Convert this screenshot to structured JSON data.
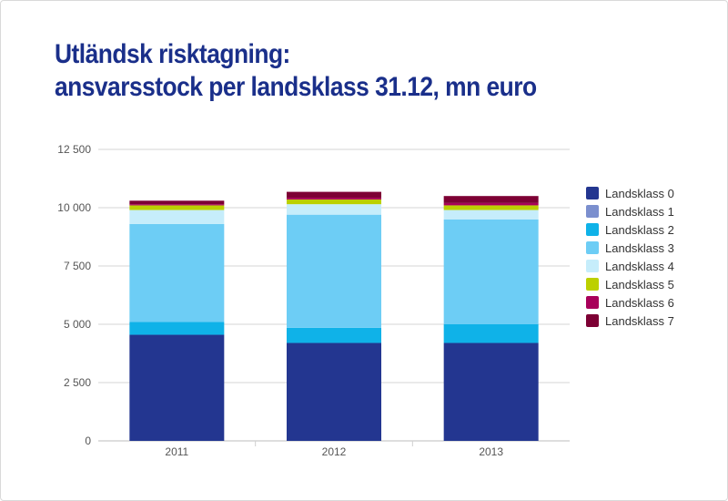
{
  "title": {
    "line1": "Utländsk risktagning:",
    "line2": "ansvarsstock per landsklass 31.12, mn euro"
  },
  "chart_data": {
    "type": "bar",
    "stacked": true,
    "title": "Utländsk risktagning: ansvarsstock per landsklass 31.12, mn euro",
    "xlabel": "",
    "ylabel": "",
    "categories": [
      "2011",
      "2012",
      "2013"
    ],
    "ylim": [
      0,
      12500
    ],
    "yticks": [
      0,
      2500,
      5000,
      7500,
      10000,
      12500
    ],
    "ytick_labels": [
      "0",
      "2 500",
      "5 000",
      "7 500",
      "10 000",
      "12 500"
    ],
    "grid": true,
    "legend_position": "right",
    "series": [
      {
        "name": "Landsklass 0",
        "color": "#233690",
        "values": [
          4550,
          4200,
          4200
        ]
      },
      {
        "name": "Landsklass 1",
        "color": "#7b8fce",
        "values": [
          0,
          0,
          0
        ]
      },
      {
        "name": "Landsklass 2",
        "color": "#0fb2e8",
        "values": [
          550,
          650,
          800
        ]
      },
      {
        "name": "Landsklass 3",
        "color": "#6dcdf5",
        "values": [
          4200,
          4850,
          4500
        ]
      },
      {
        "name": "Landsklass 4",
        "color": "#c6edfb",
        "values": [
          600,
          450,
          400
        ]
      },
      {
        "name": "Landsklass 5",
        "color": "#bcd000",
        "values": [
          200,
          200,
          200
        ]
      },
      {
        "name": "Landsklass 6",
        "color": "#a8005a",
        "values": [
          50,
          80,
          100
        ]
      },
      {
        "name": "Landsklass 7",
        "color": "#7d0034",
        "values": [
          150,
          250,
          300
        ]
      }
    ]
  }
}
